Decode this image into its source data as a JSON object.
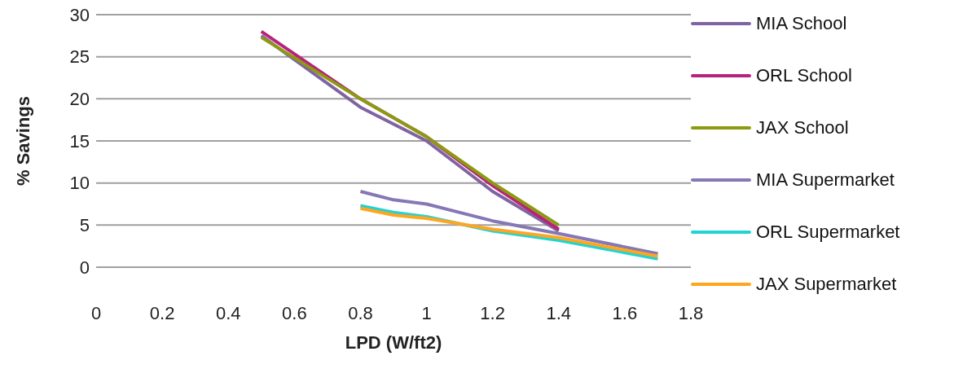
{
  "chart_data": {
    "type": "line",
    "xlabel": "LPD (W/ft2)",
    "ylabel": "% Savings",
    "xlim": [
      0,
      1.8
    ],
    "xticks": [
      0,
      0.2,
      0.4,
      0.6,
      0.8,
      1,
      1.2,
      1.4,
      1.6,
      1.8
    ],
    "ylim": [
      0,
      30
    ],
    "yticks": [
      0,
      5,
      10,
      15,
      20,
      25,
      30
    ],
    "grid": "y",
    "legend": "right",
    "marker": "none",
    "line_style": "solid",
    "series": [
      {
        "name": "MIA School",
        "color": "#8064a2",
        "x": [
          0.5,
          0.8,
          1.0,
          1.2,
          1.4
        ],
        "values": [
          27.5,
          19,
          15,
          9,
          4.3
        ]
      },
      {
        "name": "ORL School",
        "color": "#b7227a",
        "x": [
          0.5,
          0.8,
          1.0,
          1.2,
          1.4
        ],
        "values": [
          28,
          20,
          15.5,
          9.7,
          4.5
        ]
      },
      {
        "name": "JAX School",
        "color": "#8c9a10",
        "x": [
          0.5,
          0.8,
          1.0,
          1.2,
          1.4
        ],
        "values": [
          27.3,
          20,
          15.5,
          10,
          5
        ]
      },
      {
        "name": "MIA Supermarket",
        "color": "#8677b5",
        "x": [
          0.8,
          0.9,
          1.0,
          1.2,
          1.4,
          1.7
        ],
        "values": [
          9,
          8,
          7.5,
          5.5,
          4,
          1.6
        ]
      },
      {
        "name": "ORL Supermarket",
        "color": "#22d3d3",
        "x": [
          0.8,
          0.9,
          1.0,
          1.2,
          1.4,
          1.7
        ],
        "values": [
          7.3,
          6.5,
          6,
          4.3,
          3.2,
          1
        ]
      },
      {
        "name": "JAX Supermarket",
        "color": "#ffa51f",
        "x": [
          0.8,
          0.9,
          1.0,
          1.2,
          1.4,
          1.7
        ],
        "values": [
          7,
          6.2,
          5.8,
          4.5,
          3.5,
          1.3
        ]
      }
    ]
  }
}
